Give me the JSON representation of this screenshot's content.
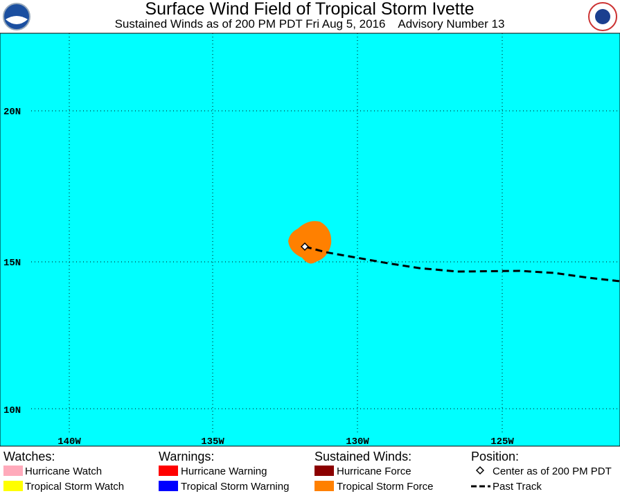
{
  "header": {
    "title": "Surface Wind Field of Tropical Storm Ivette",
    "subtitle": "Sustained Winds as of 200 PM PDT Fri Aug 5, 2016    Advisory Number 13"
  },
  "map": {
    "latitude_labels": [
      "20N",
      "15N",
      "10N"
    ],
    "longitude_labels": [
      "140W",
      "135W",
      "130W",
      "125W"
    ]
  },
  "legend": {
    "watches": {
      "title": "Watches:",
      "items": [
        "Hurricane Watch",
        "Tropical Storm Watch"
      ]
    },
    "warnings": {
      "title": "Warnings:",
      "items": [
        "Hurricane Warning",
        "Tropical Storm Warning"
      ]
    },
    "winds": {
      "title": "Sustained Winds:",
      "items": [
        "Hurricane Force",
        "Tropical Storm Force"
      ]
    },
    "position": {
      "title": "Position:",
      "items": [
        "Center as of 200 PM PDT",
        "Past Track"
      ]
    }
  }
}
